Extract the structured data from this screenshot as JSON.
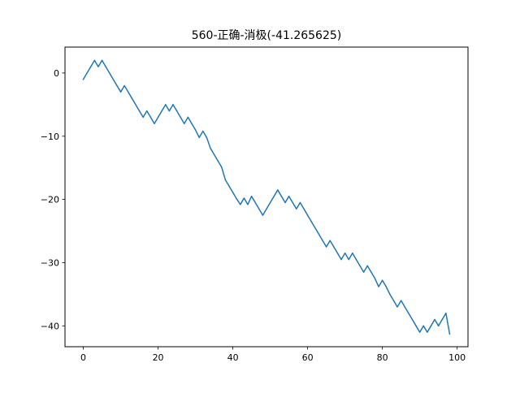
{
  "chart_data": {
    "type": "line",
    "title": "560-正确-消极(-41.265625)",
    "xlabel": "",
    "ylabel": "",
    "xlim": [
      -4.9,
      102.9
    ],
    "ylim": [
      -43.3,
      4.1
    ],
    "xticks": [
      0,
      20,
      40,
      60,
      80,
      100
    ],
    "yticks": [
      0,
      -10,
      -20,
      -30,
      -40
    ],
    "grid": false,
    "series": [
      {
        "color": "#1f77b4",
        "x": [
          0,
          1,
          2,
          3,
          4,
          5,
          6,
          7,
          8,
          9,
          10,
          11,
          12,
          13,
          14,
          15,
          16,
          17,
          18,
          19,
          20,
          21,
          22,
          23,
          24,
          25,
          26,
          27,
          28,
          29,
          30,
          31,
          32,
          33,
          34,
          35,
          36,
          37,
          38,
          39,
          40,
          41,
          42,
          43,
          44,
          45,
          46,
          47,
          48,
          49,
          50,
          51,
          52,
          53,
          54,
          55,
          56,
          57,
          58,
          59,
          60,
          61,
          62,
          63,
          64,
          65,
          66,
          67,
          68,
          69,
          70,
          71,
          72,
          73,
          74,
          75,
          76,
          77,
          78,
          79,
          80,
          81,
          82,
          83,
          84,
          85,
          86,
          87,
          88,
          89,
          90,
          91,
          92,
          93,
          94,
          95,
          96,
          97,
          98
        ],
        "y": [
          -1,
          0,
          1,
          2,
          1,
          2,
          1,
          0,
          -1,
          -2,
          -3,
          -2,
          -3,
          -4,
          -5,
          -6,
          -7,
          -6,
          -7,
          -8,
          -7,
          -6,
          -5,
          -6,
          -5,
          -6,
          -7,
          -8,
          -7,
          -8,
          -9,
          -10.2,
          -9.2,
          -10.2,
          -11.9,
          -12.9,
          -13.9,
          -14.9,
          -16.9,
          -17.9,
          -18.9,
          -19.9,
          -20.8,
          -19.8,
          -20.8,
          -19.5,
          -20.5,
          -21.5,
          -22.5,
          -21.5,
          -20.5,
          -19.5,
          -18.5,
          -19.5,
          -20.5,
          -19.5,
          -20.5,
          -21.5,
          -20.5,
          -21.5,
          -22.5,
          -23.5,
          -24.5,
          -25.5,
          -26.5,
          -27.5,
          -26.5,
          -27.5,
          -28.5,
          -29.5,
          -28.5,
          -29.5,
          -28.5,
          -29.5,
          -30.5,
          -31.5,
          -30.5,
          -31.5,
          -32.5,
          -33.8,
          -32.8,
          -33.8,
          -35,
          -36,
          -37,
          -36,
          -37,
          -38,
          -39,
          -40,
          -41,
          -40,
          -41,
          -40,
          -39,
          -40,
          -39,
          -38,
          -41.3
        ]
      }
    ]
  }
}
